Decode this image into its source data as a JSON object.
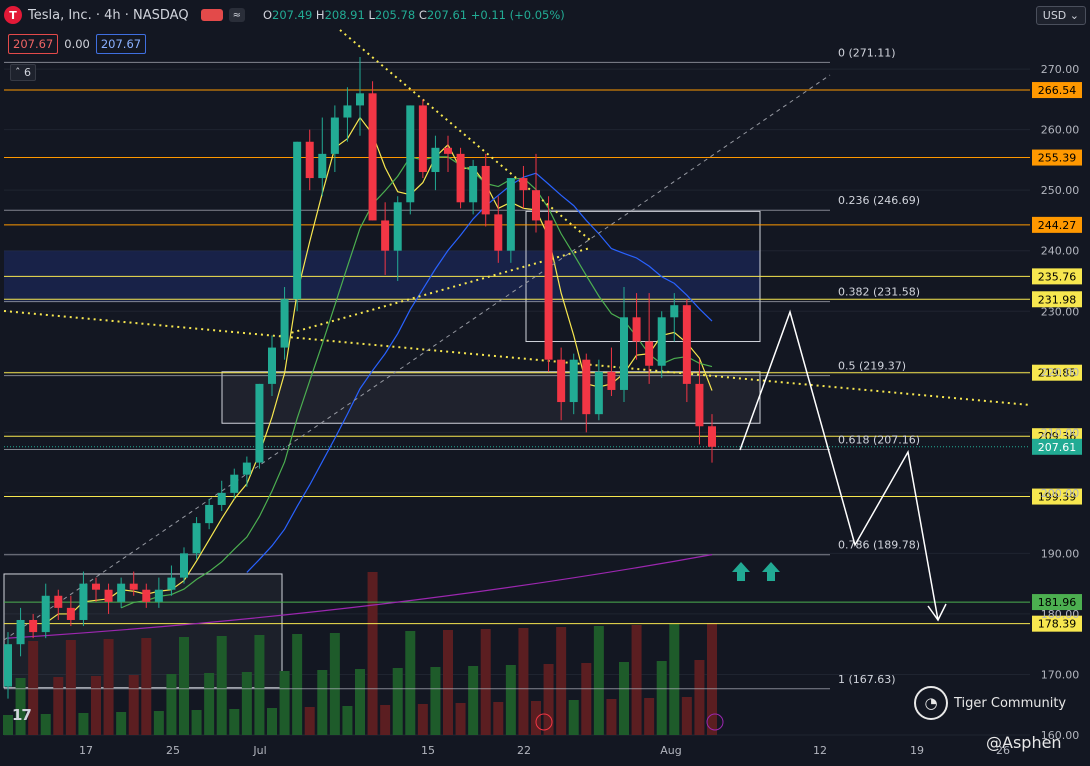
{
  "header": {
    "logo_letter": "T",
    "symbol_title": "Tesla, Inc. · 4h · NASDAQ",
    "indicator_pill": "≈",
    "ohlc": {
      "o_label": "O",
      "o": "207.49",
      "h_label": "H",
      "h": "208.91",
      "l_label": "L",
      "l": "205.78",
      "c_label": "C",
      "c": "207.61",
      "change": "+0.11 (+0.05%)"
    }
  },
  "price_boxes": {
    "sell": "207.67",
    "spread": "0.00",
    "buy": "207.67"
  },
  "collapse_count": "6",
  "currency": "USD",
  "watermarks": {
    "community": "Tiger Community",
    "handle": "@Asphen",
    "community_icon": "tiger-community-logo",
    "platform": "17"
  },
  "colors": {
    "up": "#22ab94",
    "down": "#f23645",
    "sma_fast": "#f7e74f",
    "sma_mid": "#4caf50",
    "sma_slow": "#2962ff",
    "sma_long": "#9c27b0",
    "fib": "#b2b5be",
    "hline_yellow": "#f7e74f",
    "hline_orange": "#ff9800",
    "badge_blue": "#1e2d6e",
    "arrow": "#ffffff",
    "vol_up": "#1e5b2a",
    "vol_down": "#5b1e21"
  },
  "chart_data": {
    "type": "candlestick",
    "y_axis": {
      "ticks": [
        160,
        170,
        180,
        190,
        200,
        210,
        220,
        230,
        240,
        250,
        260,
        270
      ],
      "range": [
        160,
        272
      ]
    },
    "x_axis": {
      "ticks": [
        "17",
        "25",
        "Jul",
        "15",
        "22",
        "Aug",
        "12",
        "19",
        "26"
      ]
    },
    "fib_levels": [
      {
        "label": "0 (271.11)",
        "value": 271.11
      },
      {
        "label": "0.236 (246.69)",
        "value": 246.69
      },
      {
        "label": "0.382 (231.58)",
        "value": 231.58
      },
      {
        "label": "0.5 (219.37)",
        "value": 219.37
      },
      {
        "label": "0.618 (207.16)",
        "value": 207.16
      },
      {
        "label": "0.786 (189.78)",
        "value": 189.78
      },
      {
        "label": "1 (167.63)",
        "value": 167.63
      }
    ],
    "horizontal_levels": [
      {
        "label": "266.54",
        "value": 266.54,
        "color": "orange"
      },
      {
        "label": "255.39",
        "value": 255.39,
        "color": "orange"
      },
      {
        "label": "244.27",
        "value": 244.27,
        "color": "orange"
      },
      {
        "label": "235.76",
        "value": 235.76,
        "color": "yellow"
      },
      {
        "label": "231.98",
        "value": 231.98,
        "color": "yellow"
      },
      {
        "label": "219.85",
        "value": 219.85,
        "color": "yellow"
      },
      {
        "label": "209.36",
        "value": 209.36,
        "color": "yellow"
      },
      {
        "label": "199.39",
        "value": 199.39,
        "color": "yellow"
      },
      {
        "label": "181.96",
        "value": 181.96,
        "color": "green"
      },
      {
        "label": "178.39",
        "value": 178.39,
        "color": "yellow"
      }
    ],
    "last_price": {
      "label": "207.61",
      "value": 207.61
    },
    "candles": [
      [
        168,
        177,
        166,
        175
      ],
      [
        175,
        181,
        173,
        179
      ],
      [
        179,
        180,
        176,
        177
      ],
      [
        177,
        185,
        176,
        183
      ],
      [
        183,
        184,
        179,
        181
      ],
      [
        181,
        183,
        178,
        179
      ],
      [
        179,
        187,
        178,
        185
      ],
      [
        185,
        186,
        182,
        184
      ],
      [
        184,
        185,
        180,
        182
      ],
      [
        182,
        186,
        181,
        185
      ],
      [
        185,
        187,
        183,
        184
      ],
      [
        184,
        185,
        181,
        182
      ],
      [
        182,
        186,
        181,
        184
      ],
      [
        184,
        188,
        183,
        186
      ],
      [
        186,
        191,
        185,
        190
      ],
      [
        190,
        196,
        189,
        195
      ],
      [
        195,
        199,
        194,
        198
      ],
      [
        198,
        202,
        197,
        200
      ],
      [
        200,
        204,
        199,
        203
      ],
      [
        203,
        206,
        201,
        205
      ],
      [
        205,
        218,
        204,
        218
      ],
      [
        218,
        226,
        216,
        224
      ],
      [
        224,
        234,
        222,
        232
      ],
      [
        232,
        258,
        230,
        258
      ],
      [
        258,
        260,
        250,
        252
      ],
      [
        252,
        262,
        249,
        256
      ],
      [
        256,
        264,
        253,
        262
      ],
      [
        262,
        267,
        258,
        264
      ],
      [
        264,
        272,
        259,
        266
      ],
      [
        266,
        268,
        245,
        245
      ],
      [
        245,
        248,
        236,
        240
      ],
      [
        240,
        249,
        235,
        248
      ],
      [
        248,
        264,
        246,
        264
      ],
      [
        264,
        265,
        252,
        253
      ],
      [
        253,
        259,
        250,
        257
      ],
      [
        257,
        259,
        253,
        256
      ],
      [
        256,
        257,
        247,
        248
      ],
      [
        248,
        255,
        246,
        254
      ],
      [
        254,
        256,
        244,
        246
      ],
      [
        246,
        249,
        238,
        240
      ],
      [
        240,
        252,
        238,
        252
      ],
      [
        252,
        254,
        247,
        250
      ],
      [
        250,
        256,
        243,
        245
      ],
      [
        245,
        249,
        220,
        222
      ],
      [
        222,
        224,
        212,
        215
      ],
      [
        215,
        223,
        213,
        222
      ],
      [
        222,
        223,
        210,
        213
      ],
      [
        213,
        222,
        212,
        220
      ],
      [
        220,
        224,
        216,
        217
      ],
      [
        217,
        234,
        215,
        229
      ],
      [
        229,
        233,
        222,
        225
      ],
      [
        225,
        233,
        218,
        221
      ],
      [
        221,
        230,
        219,
        229
      ],
      [
        229,
        233,
        225,
        231
      ],
      [
        231,
        232,
        215,
        218
      ],
      [
        218,
        222,
        208,
        211
      ],
      [
        211,
        213,
        205,
        207.61
      ]
    ],
    "volume_note": "volume bars along bottom"
  }
}
